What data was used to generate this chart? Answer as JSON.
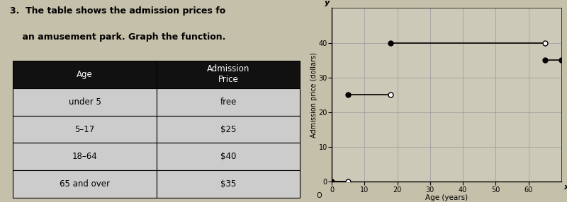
{
  "title_line1": "3.  The table shows the admission prices fo",
  "title_line2": "    an amusement park. Graph the function.",
  "table": {
    "headers": [
      "Age",
      "Admission\nPrice"
    ],
    "rows": [
      [
        "under 5",
        "free"
      ],
      [
        "5–17",
        "$25"
      ],
      [
        "18–64",
        "$40"
      ],
      [
        "65 and over",
        "$35"
      ]
    ],
    "header_bg": "#111111",
    "header_fg": "#ffffff",
    "row_bg": "#cccccc",
    "row_fg": "#000000",
    "border_color": "#000000"
  },
  "graph": {
    "xlabel": "Age (years)",
    "ylabel": "Admission price (dollars)",
    "xlim": [
      0,
      70
    ],
    "ylim": [
      0,
      50
    ],
    "xticks": [
      0,
      10,
      20,
      30,
      40,
      50,
      60
    ],
    "yticks": [
      0,
      10,
      20,
      30,
      40
    ],
    "bg_color": "#cdc9b8",
    "grid_color": "#999999",
    "segments": [
      {
        "x_start": 0,
        "x_end": 5,
        "y": 0,
        "left_closed": true,
        "right_closed": false
      },
      {
        "x_start": 5,
        "x_end": 18,
        "y": 25,
        "left_closed": true,
        "right_closed": false
      },
      {
        "x_start": 18,
        "x_end": 65,
        "y": 40,
        "left_closed": true,
        "right_closed": false
      },
      {
        "x_start": 65,
        "x_end": 70,
        "y": 35,
        "left_closed": true,
        "right_closed": true
      }
    ],
    "line_color": "#000000",
    "dot_filled_color": "#000000",
    "dot_open_color": "#ffffff",
    "dot_size": 5
  },
  "fig_bg": "#c5c0aa"
}
